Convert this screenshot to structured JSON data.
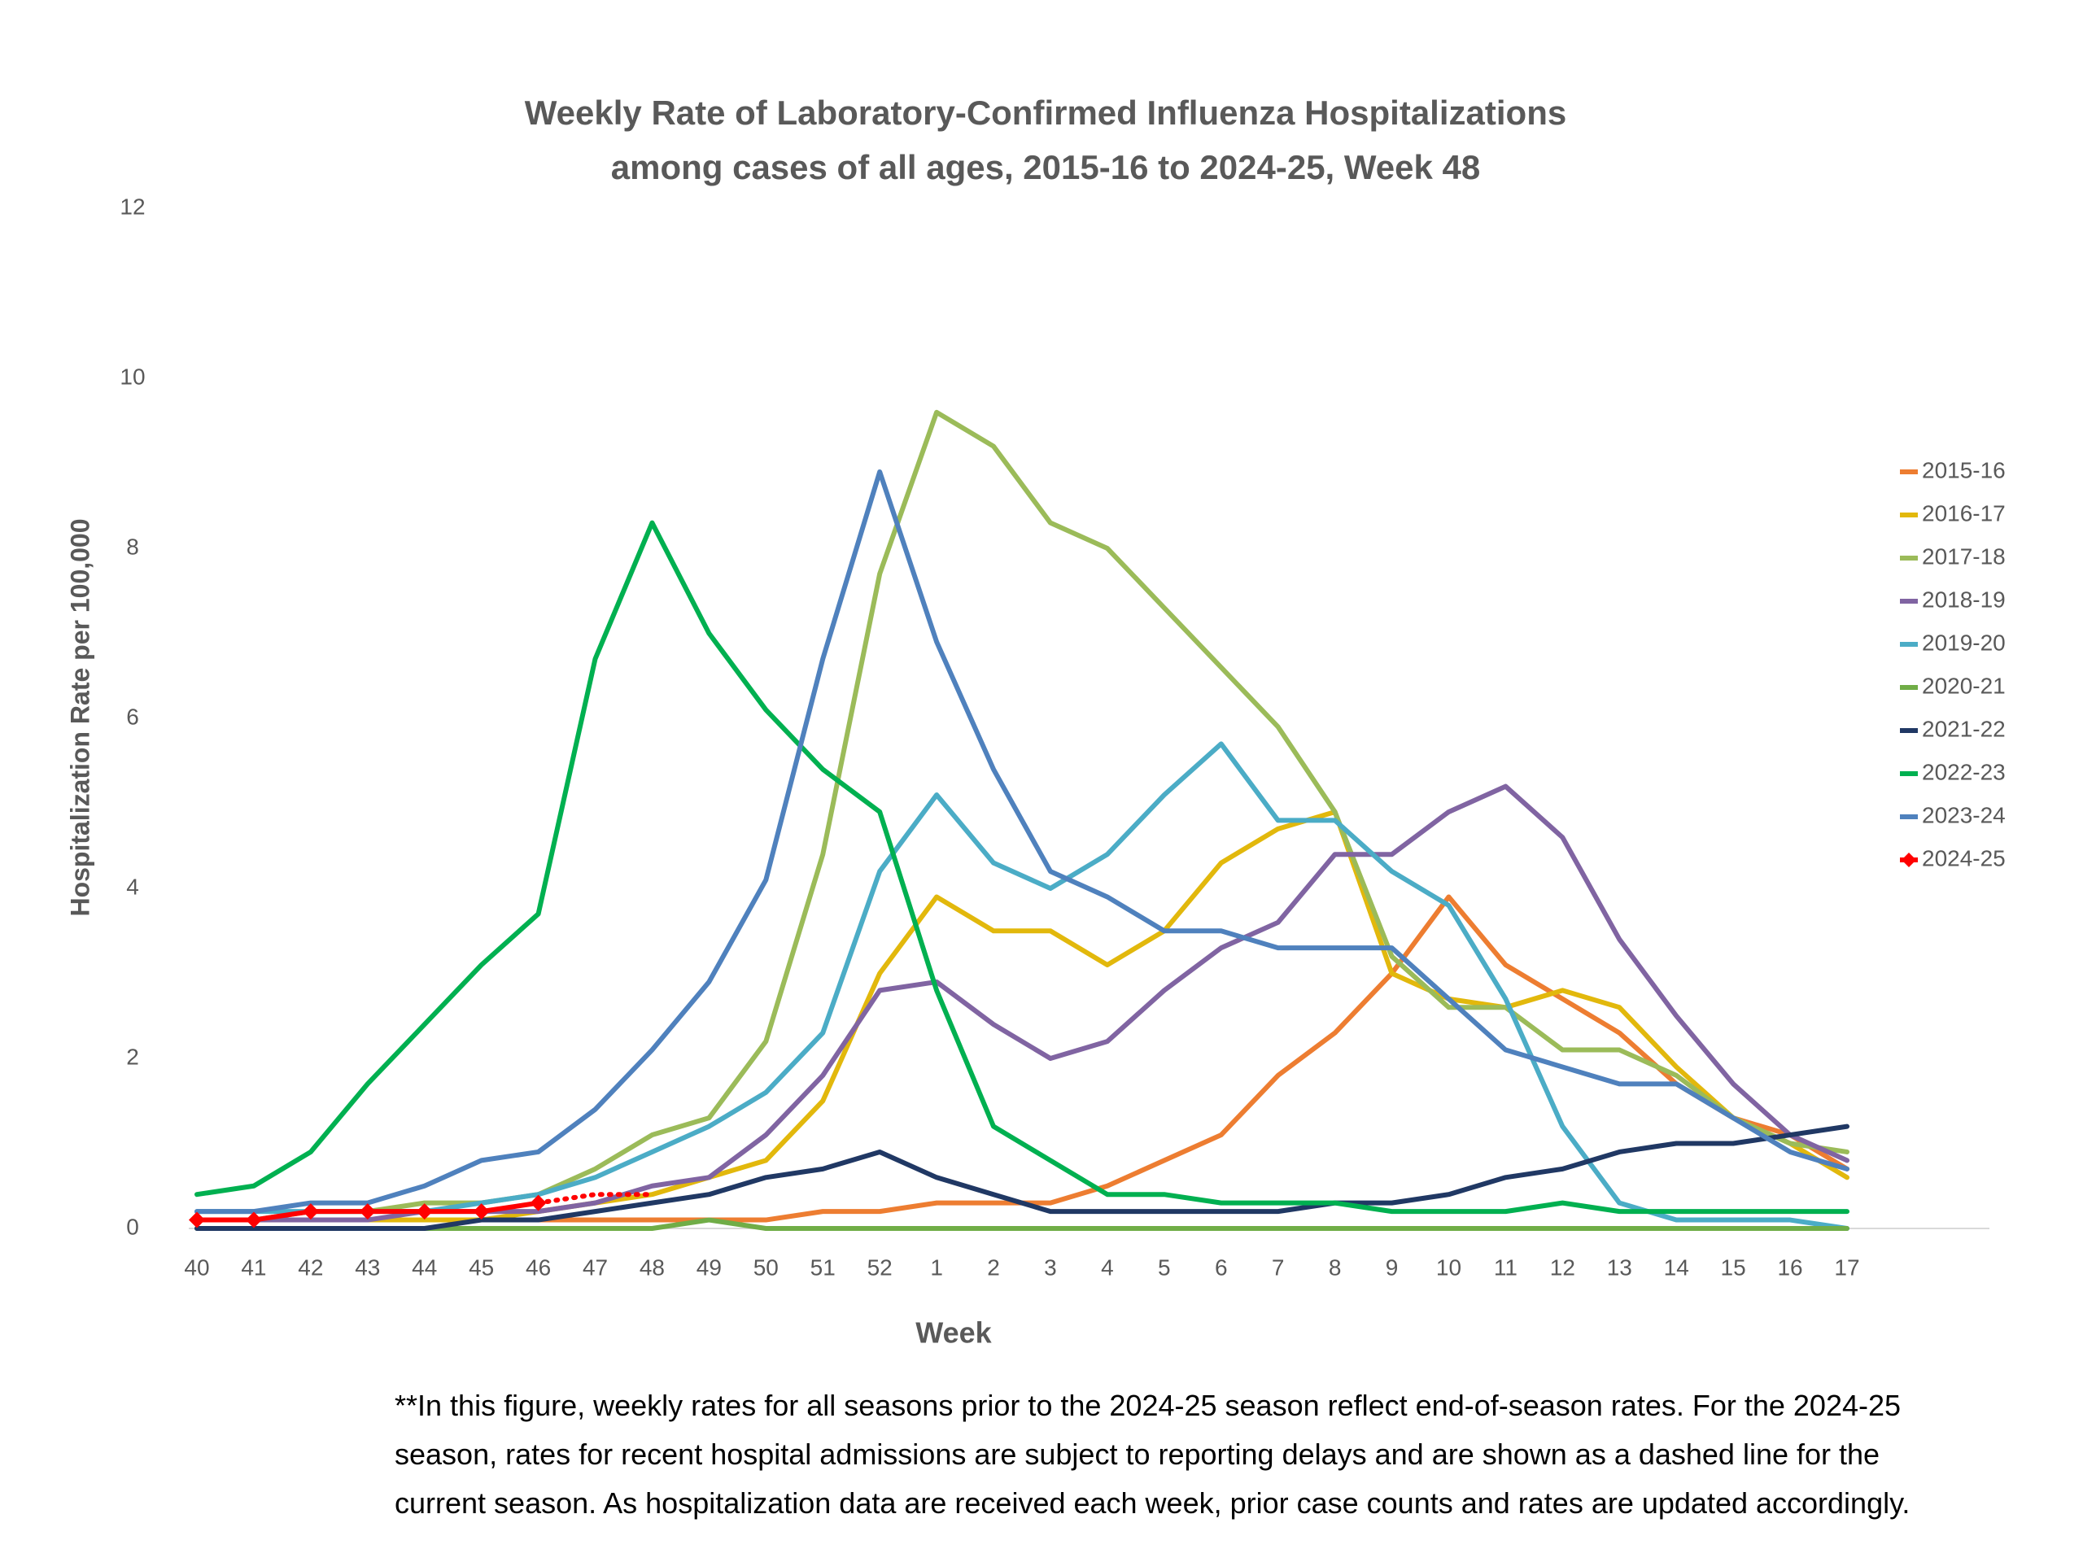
{
  "chart_data": {
    "type": "line",
    "title": "Weekly Rate of Laboratory-Confirmed Influenza Hospitalizations",
    "subtitle": "among cases of all ages, 2015-16 to 2024-25, Week 48",
    "x_label": "Week",
    "y_label": "Hospitalization Rate per 100,000",
    "footnote": "**In this figure, weekly rates for all seasons prior to the 2024-25 season reflect end-of-season rates. For the 2024-25 season, rates for recent hospital admissions are subject to reporting delays and are shown as a dashed line for the current season. As hospitalization data are received each week, prior case counts and rates are updated accordingly.",
    "categories": [
      "40",
      "41",
      "42",
      "43",
      "44",
      "45",
      "46",
      "47",
      "48",
      "49",
      "50",
      "51",
      "52",
      "1",
      "2",
      "3",
      "4",
      "5",
      "6",
      "7",
      "8",
      "9",
      "10",
      "11",
      "12",
      "13",
      "14",
      "15",
      "16",
      "17"
    ],
    "ylim": [
      0,
      12
    ],
    "yticks": [
      0,
      2,
      4,
      6,
      8,
      10,
      12
    ],
    "grid": false,
    "legend": "right",
    "series": [
      {
        "name": "2015-16",
        "color": "#ed7d31",
        "values": [
          0.1,
          0.1,
          0.1,
          0.1,
          0.1,
          0.1,
          0.1,
          0.1,
          0.1,
          0.1,
          0.1,
          0.2,
          0.2,
          0.3,
          0.3,
          0.3,
          0.5,
          0.8,
          1.1,
          1.8,
          2.3,
          3.0,
          3.9,
          3.1,
          2.7,
          2.3,
          1.7,
          1.3,
          1.1,
          0.7
        ]
      },
      {
        "name": "2016-17",
        "color": "#e2b80c",
        "values": [
          0.1,
          0.1,
          0.1,
          0.1,
          0.1,
          0.1,
          0.2,
          0.3,
          0.4,
          0.6,
          0.8,
          1.5,
          3.0,
          3.9,
          3.5,
          3.5,
          3.1,
          3.5,
          4.3,
          4.7,
          4.9,
          3.0,
          2.7,
          2.6,
          2.8,
          2.6,
          1.9,
          1.3,
          1.0,
          0.6
        ]
      },
      {
        "name": "2017-18",
        "color": "#9bbb59",
        "values": [
          0.1,
          0.1,
          0.2,
          0.2,
          0.3,
          0.3,
          0.4,
          0.7,
          1.1,
          1.3,
          2.2,
          4.4,
          7.7,
          9.6,
          9.2,
          8.3,
          8.0,
          7.3,
          6.6,
          5.9,
          4.9,
          3.2,
          2.6,
          2.6,
          2.1,
          2.1,
          1.8,
          1.3,
          1.0,
          0.9
        ]
      },
      {
        "name": "2018-19",
        "color": "#8064a2",
        "values": [
          0.1,
          0.1,
          0.1,
          0.1,
          0.2,
          0.2,
          0.2,
          0.3,
          0.5,
          0.6,
          1.1,
          1.8,
          2.8,
          2.9,
          2.4,
          2.0,
          2.2,
          2.8,
          3.3,
          3.6,
          4.4,
          4.4,
          4.9,
          5.2,
          4.6,
          3.4,
          2.5,
          1.7,
          1.1,
          0.8
        ]
      },
      {
        "name": "2019-20",
        "color": "#4bacc6",
        "values": [
          0.2,
          0.2,
          0.2,
          0.2,
          0.2,
          0.3,
          0.4,
          0.6,
          0.9,
          1.2,
          1.6,
          2.3,
          4.2,
          5.1,
          4.3,
          4.0,
          4.4,
          5.1,
          5.7,
          4.8,
          4.8,
          4.2,
          3.8,
          2.7,
          1.2,
          0.3,
          0.1,
          0.1,
          0.1,
          0.0
        ]
      },
      {
        "name": "2020-21",
        "color": "#70ad47",
        "values": [
          0,
          0,
          0,
          0,
          0,
          0,
          0,
          0,
          0,
          0.1,
          0,
          0,
          0,
          0,
          0,
          0,
          0,
          0,
          0,
          0,
          0,
          0,
          0,
          0,
          0,
          0,
          0,
          0,
          0,
          0
        ]
      },
      {
        "name": "2021-22",
        "color": "#203864",
        "values": [
          0,
          0,
          0,
          0,
          0,
          0.1,
          0.1,
          0.2,
          0.3,
          0.4,
          0.6,
          0.7,
          0.9,
          0.6,
          0.4,
          0.2,
          0.2,
          0.2,
          0.2,
          0.2,
          0.3,
          0.3,
          0.4,
          0.6,
          0.7,
          0.9,
          1.0,
          1.0,
          1.1,
          1.2
        ]
      },
      {
        "name": "2022-23",
        "color": "#00b050",
        "values": [
          0.4,
          0.5,
          0.9,
          1.7,
          2.4,
          3.1,
          3.7,
          6.7,
          8.3,
          7.0,
          6.1,
          5.4,
          4.9,
          2.8,
          1.2,
          0.8,
          0.4,
          0.4,
          0.3,
          0.3,
          0.3,
          0.2,
          0.2,
          0.2,
          0.3,
          0.2,
          0.2,
          0.2,
          0.2,
          0.2
        ]
      },
      {
        "name": "2023-24",
        "color": "#4f81bd",
        "values": [
          0.2,
          0.2,
          0.3,
          0.3,
          0.5,
          0.8,
          0.9,
          1.4,
          2.1,
          2.9,
          4.1,
          6.7,
          8.9,
          6.9,
          5.4,
          4.2,
          3.9,
          3.5,
          3.5,
          3.3,
          3.3,
          3.3,
          2.7,
          2.1,
          1.9,
          1.7,
          1.7,
          1.3,
          0.9,
          0.7
        ]
      },
      {
        "name": "2024-25",
        "color": "#ff0000",
        "marker": "diamond",
        "dashed_from_index": 6,
        "values": [
          0.1,
          0.1,
          0.2,
          0.2,
          0.2,
          0.2,
          0.3,
          0.4,
          0.4,
          null,
          null,
          null,
          null,
          null,
          null,
          null,
          null,
          null,
          null,
          null,
          null,
          null,
          null,
          null,
          null,
          null,
          null,
          null,
          null,
          null
        ]
      }
    ]
  }
}
